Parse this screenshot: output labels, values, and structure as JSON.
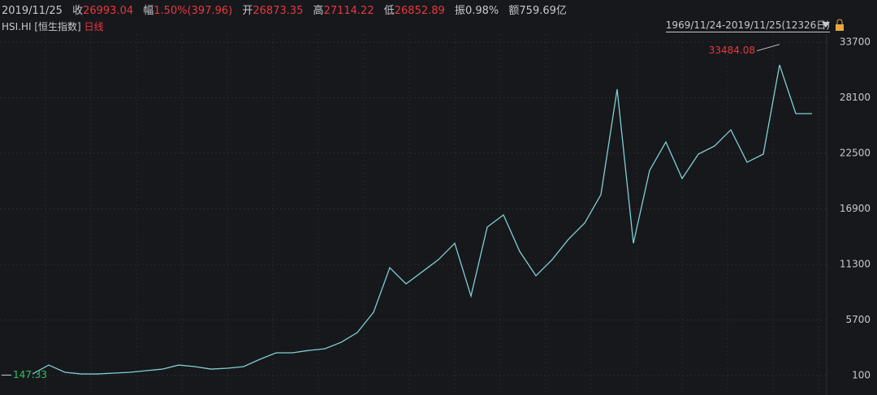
{
  "header": {
    "date": "2019/11/25",
    "close_label": "收",
    "close": "26993.04",
    "change_label": "幅",
    "change": "1.50%(397.96)",
    "open_label": "开",
    "open": "26873.35",
    "high_label": "高",
    "high": "27114.22",
    "low_label": "低",
    "low": "26852.89",
    "amplitude_label": "振",
    "amplitude": "0.98%",
    "amount_label": "额",
    "amount": "759.69亿",
    "symbol": "HSI.HI [恒生指数]",
    "period": "日线",
    "range": "1969/11/24-2019/11/25(12326日)"
  },
  "chart_data": {
    "type": "line",
    "color": "#7fd0d4",
    "values": [
      263,
      1160,
      430,
      260,
      260,
      345,
      430,
      590,
      750,
      1160,
      1000,
      750,
      840,
      1000,
      1735,
      2390,
      2390,
      2630,
      2800,
      3450,
      4430,
      6480,
      10970,
      9340,
      10560,
      11790,
      13430,
      8110,
      15060,
      16290,
      12610,
      10160,
      11790,
      13830,
      15470,
      18330,
      28960,
      13430,
      20780,
      23640,
      19960,
      22420,
      23240,
      24870,
      21600,
      22420,
      31410,
      26500,
      26500
    ],
    "ylim": [
      -1860,
      34520
    ],
    "yticks": [
      33700,
      28100,
      22500,
      16900,
      11300,
      5700,
      100
    ],
    "grid": true,
    "max_label": 33484.08,
    "min_label": 147.33
  }
}
